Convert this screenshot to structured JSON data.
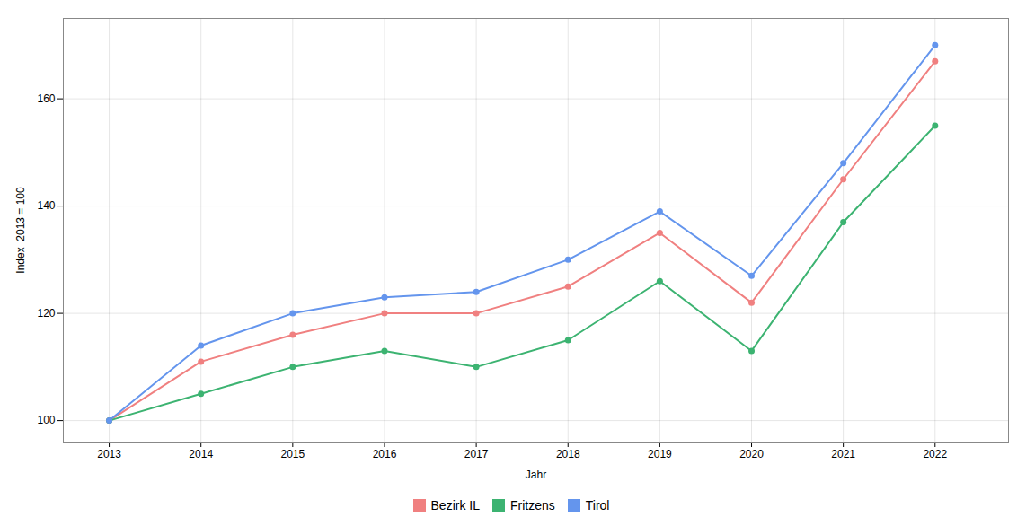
{
  "chart_data": {
    "type": "line",
    "x": [
      2013,
      2014,
      2015,
      2016,
      2017,
      2018,
      2019,
      2020,
      2021,
      2022
    ],
    "series": [
      {
        "name": "Bezirk IL",
        "color": "#F08080",
        "values": [
          100,
          111,
          116,
          120,
          120,
          125,
          135,
          122,
          145,
          167
        ]
      },
      {
        "name": "Fritzens",
        "color": "#3CB371",
        "values": [
          100,
          105,
          110,
          113,
          110,
          115,
          126,
          113,
          137,
          155
        ]
      },
      {
        "name": "Tirol",
        "color": "#6495ED",
        "values": [
          100,
          114,
          120,
          123,
          124,
          130,
          139,
          127,
          148,
          170
        ]
      }
    ],
    "xlabel": "Jahr",
    "ylabel": "Index  2013 = 100",
    "xlim": [
      2012.5,
      2022.8
    ],
    "xticks": [
      2013,
      2014,
      2015,
      2016,
      2017,
      2018,
      2019,
      2020,
      2021,
      2022
    ],
    "ylim": [
      96,
      175
    ],
    "yticks": [
      100,
      120,
      140,
      160
    ],
    "grid": true,
    "legend": "bottom",
    "marker": "circle"
  }
}
